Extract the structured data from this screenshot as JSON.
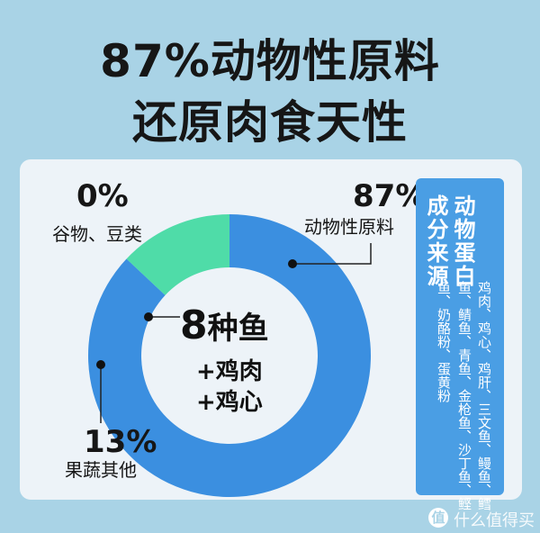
{
  "headline": {
    "line1": "87%动物性原料",
    "line2": "还原肉食天性"
  },
  "chart_data": {
    "type": "pie",
    "slices": [
      {
        "label": "动物性原料",
        "value": 87,
        "color": "#3b8fe0"
      },
      {
        "label": "果蔬其他",
        "value": 13,
        "color": "#4fdca8"
      },
      {
        "label": "谷物、豆类",
        "value": 0,
        "color": "#bcd6ec"
      }
    ]
  },
  "labels": {
    "grain": {
      "pct": "0%",
      "name": "谷物、豆类"
    },
    "animal": {
      "pct": "87%",
      "name": "动物性原料"
    },
    "veg": {
      "pct": "13%",
      "name": "果蔬其他"
    }
  },
  "center": {
    "main_num": "8",
    "main_text": "种鱼",
    "sub1": "+鸡肉",
    "sub2": "+鸡心"
  },
  "panel": {
    "title_1": "动物蛋白",
    "title_2": "成分来源",
    "line_1": "鸡肉、鸡心、鸡肝、三文鱼、鳗鱼、鳕",
    "line_2": "鱼、鲭鱼、青鱼、金枪鱼、沙丁鱼、鲣",
    "line_3": "鱼、奶酪粉、蛋黄粉"
  },
  "watermark": {
    "icon": "值",
    "text": "什么值得买"
  },
  "colors": {
    "background": "#a9d3e6",
    "card": "#edf3f8",
    "panel": "#4a9ee4"
  }
}
